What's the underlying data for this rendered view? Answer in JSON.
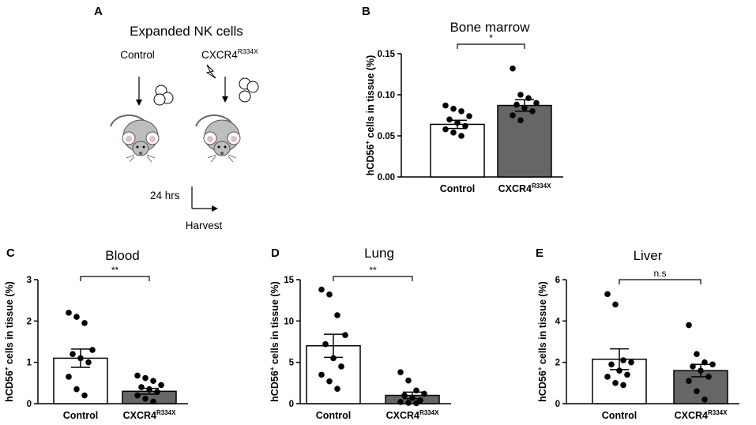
{
  "panels": {
    "A": {
      "letter": "A",
      "title": "Expanded NK cells",
      "group_control": "Control",
      "group_mutant_base": "CXCR4",
      "group_mutant_sup": "R334X",
      "time": "24 hrs",
      "harvest": "Harvest"
    },
    "B": {
      "letter": "B"
    },
    "C": {
      "letter": "C"
    },
    "D": {
      "letter": "D"
    },
    "E": {
      "letter": "E"
    }
  },
  "chart_data": [
    {
      "panel": "B",
      "type": "bar",
      "title": "Bone marrow",
      "ylabel_base": "hCD56",
      "ylabel_sup": "+",
      "ylabel_rest": " cells in tissue (%)",
      "categories": [
        "Control",
        "CXCR4"
      ],
      "category_sup": [
        "",
        "R334X"
      ],
      "values": [
        0.064,
        0.087
      ],
      "sem": [
        0.005,
        0.007
      ],
      "points": [
        [
          0.087,
          0.083,
          0.08,
          0.074,
          0.07,
          0.066,
          0.062,
          0.058,
          0.054,
          0.05
        ],
        [
          0.132,
          0.1,
          0.096,
          0.09,
          0.088,
          0.084,
          0.08,
          0.075,
          0.069
        ]
      ],
      "bar_colors": [
        "#ffffff",
        "#666666"
      ],
      "ylim": [
        0,
        0.15
      ],
      "yticks": [
        "0.00",
        "0.05",
        "0.10",
        "0.15"
      ],
      "significance": "*"
    },
    {
      "panel": "C",
      "type": "bar",
      "title": "Blood",
      "ylabel_base": "hCD56",
      "ylabel_sup": "+",
      "ylabel_rest": " cells in tissue (%)",
      "categories": [
        "Control",
        "CXCR4"
      ],
      "category_sup": [
        "",
        "R334X"
      ],
      "values": [
        1.1,
        0.3
      ],
      "sem": [
        0.22,
        0.07
      ],
      "points": [
        [
          2.2,
          2.1,
          1.95,
          1.3,
          1.2,
          1.1,
          1.0,
          0.65,
          0.35,
          0.2
        ],
        [
          0.68,
          0.62,
          0.55,
          0.45,
          0.4,
          0.35,
          0.28,
          0.2,
          0.12,
          0.05
        ]
      ],
      "bar_colors": [
        "#ffffff",
        "#666666"
      ],
      "ylim": [
        0,
        3
      ],
      "yticks": [
        "0",
        "1",
        "2",
        "3"
      ],
      "significance": "**"
    },
    {
      "panel": "D",
      "type": "bar",
      "title": "Lung",
      "ylabel_base": "hCD56",
      "ylabel_sup": "+",
      "ylabel_rest": " cells in tissue (%)",
      "categories": [
        "Control",
        "CXCR4"
      ],
      "category_sup": [
        "",
        "R334X"
      ],
      "values": [
        7.0,
        1.0
      ],
      "sem": [
        1.4,
        0.4
      ],
      "points": [
        [
          13.8,
          13.2,
          10.7,
          8.3,
          7.2,
          5.5,
          4.5,
          3.5,
          2.7,
          1.8
        ],
        [
          3.8,
          2.8,
          1.6,
          1.2,
          1.0,
          0.7,
          0.4,
          0.2,
          0.1,
          0.05
        ]
      ],
      "bar_colors": [
        "#ffffff",
        "#666666"
      ],
      "ylim": [
        0,
        15
      ],
      "yticks": [
        "0",
        "5",
        "10",
        "15"
      ],
      "significance": "**"
    },
    {
      "panel": "E",
      "type": "bar",
      "title": "Liver",
      "ylabel_base": "hCD56",
      "ylabel_sup": "+",
      "ylabel_rest": " cells in tissue (%)",
      "categories": [
        "Control",
        "CXCR4"
      ],
      "category_sup": [
        "",
        "R334X"
      ],
      "values": [
        2.15,
        1.6
      ],
      "sem": [
        0.5,
        0.3
      ],
      "points": [
        [
          5.3,
          4.8,
          2.1,
          2.0,
          1.9,
          1.6,
          1.4,
          1.3,
          1.0,
          0.9
        ],
        [
          3.8,
          2.4,
          2.0,
          1.9,
          1.8,
          1.6,
          1.3,
          1.1,
          0.6,
          0.2
        ]
      ],
      "bar_colors": [
        "#ffffff",
        "#666666"
      ],
      "ylim": [
        0,
        6
      ],
      "yticks": [
        "0",
        "2",
        "4",
        "6"
      ],
      "significance": "n.s"
    }
  ]
}
